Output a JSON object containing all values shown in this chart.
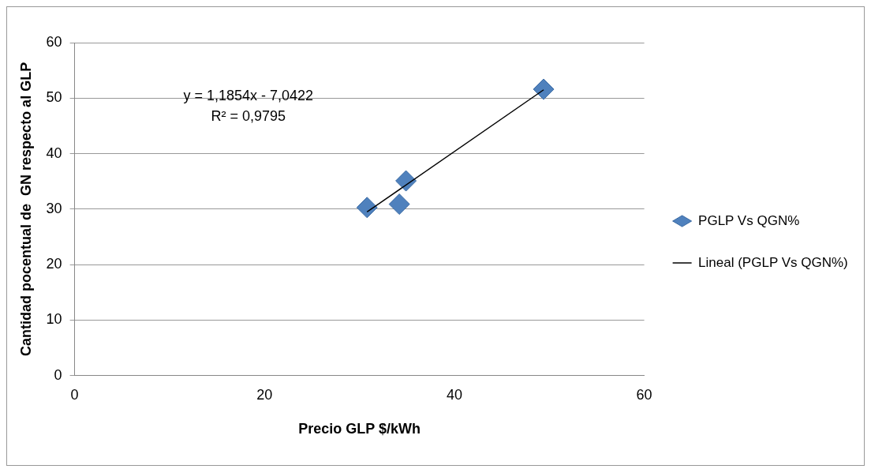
{
  "chart_data": {
    "type": "scatter",
    "xlabel": "Precio GLP $/kWh",
    "ylabel": "Cantidad pocentual de  GN respecto al GLP",
    "xlim": [
      0,
      60
    ],
    "xticks": [
      0,
      20,
      40,
      60
    ],
    "ylim": [
      0,
      60
    ],
    "yticks": [
      0,
      10,
      20,
      30,
      40,
      50,
      60
    ],
    "grid": "y",
    "legend": "right",
    "marker": "diamond",
    "annotations": [
      "y = 1,1854x - 7,0422",
      "R² = 0,9795"
    ],
    "series": [
      {
        "name": "PGLP Vs QGN%",
        "color": "#4f81bd",
        "x": [
          30.8,
          34.2,
          34.9,
          49.4
        ],
        "values": [
          30.3,
          30.9,
          35.1,
          51.6
        ]
      },
      {
        "name": "Lineal (PGLP Vs QGN%)",
        "type": "line",
        "color": "#000000",
        "x": [
          30.8,
          49.4
        ],
        "values": [
          29.5,
          51.5
        ],
        "marker": "none"
      }
    ]
  }
}
